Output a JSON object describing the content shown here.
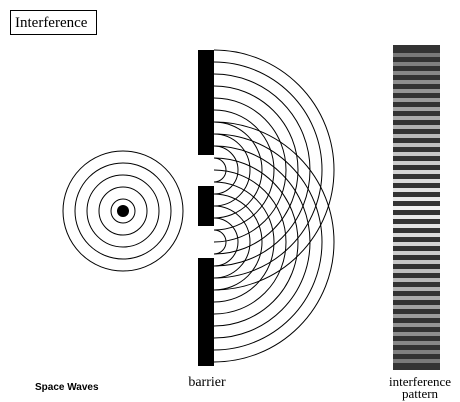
{
  "title": "Interference",
  "labels": {
    "source": "Space Waves",
    "barrier": "barrier",
    "pattern": [
      "interference",
      "pattern"
    ]
  }
}
